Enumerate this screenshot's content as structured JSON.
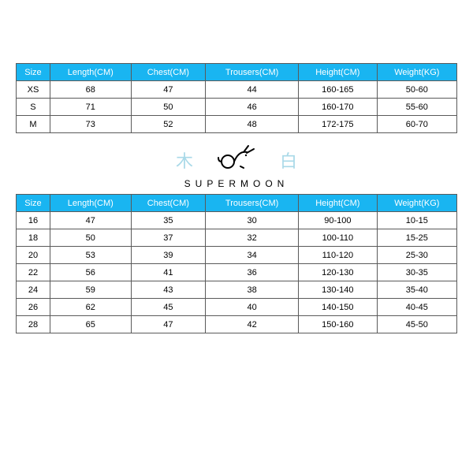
{
  "header_color": "#19b5f1",
  "border_color": "#5a5a5a",
  "columns": [
    "Size",
    "Length(CM)",
    "Chest(CM)",
    "Trousers(CM)",
    "Height(CM)",
    "Weight(KG)"
  ],
  "adult_table": {
    "rows": [
      [
        "XS",
        "68",
        "47",
        "44",
        "160-165",
        "50-60"
      ],
      [
        "S",
        "71",
        "50",
        "46",
        "160-170",
        "55-60"
      ],
      [
        "M",
        "73",
        "52",
        "48",
        "172-175",
        "60-70"
      ]
    ]
  },
  "logo": {
    "left_char": "木",
    "right_char": "白",
    "brand": "SUPERMOON"
  },
  "kids_table": {
    "rows": [
      [
        "16",
        "47",
        "35",
        "30",
        "90-100",
        "10-15"
      ],
      [
        "18",
        "50",
        "37",
        "32",
        "100-110",
        "15-25"
      ],
      [
        "20",
        "53",
        "39",
        "34",
        "110-120",
        "25-30"
      ],
      [
        "22",
        "56",
        "41",
        "36",
        "120-130",
        "30-35"
      ],
      [
        "24",
        "59",
        "43",
        "38",
        "130-140",
        "35-40"
      ],
      [
        "26",
        "62",
        "45",
        "40",
        "140-150",
        "40-45"
      ],
      [
        "28",
        "65",
        "47",
        "42",
        "150-160",
        "45-50"
      ]
    ]
  }
}
